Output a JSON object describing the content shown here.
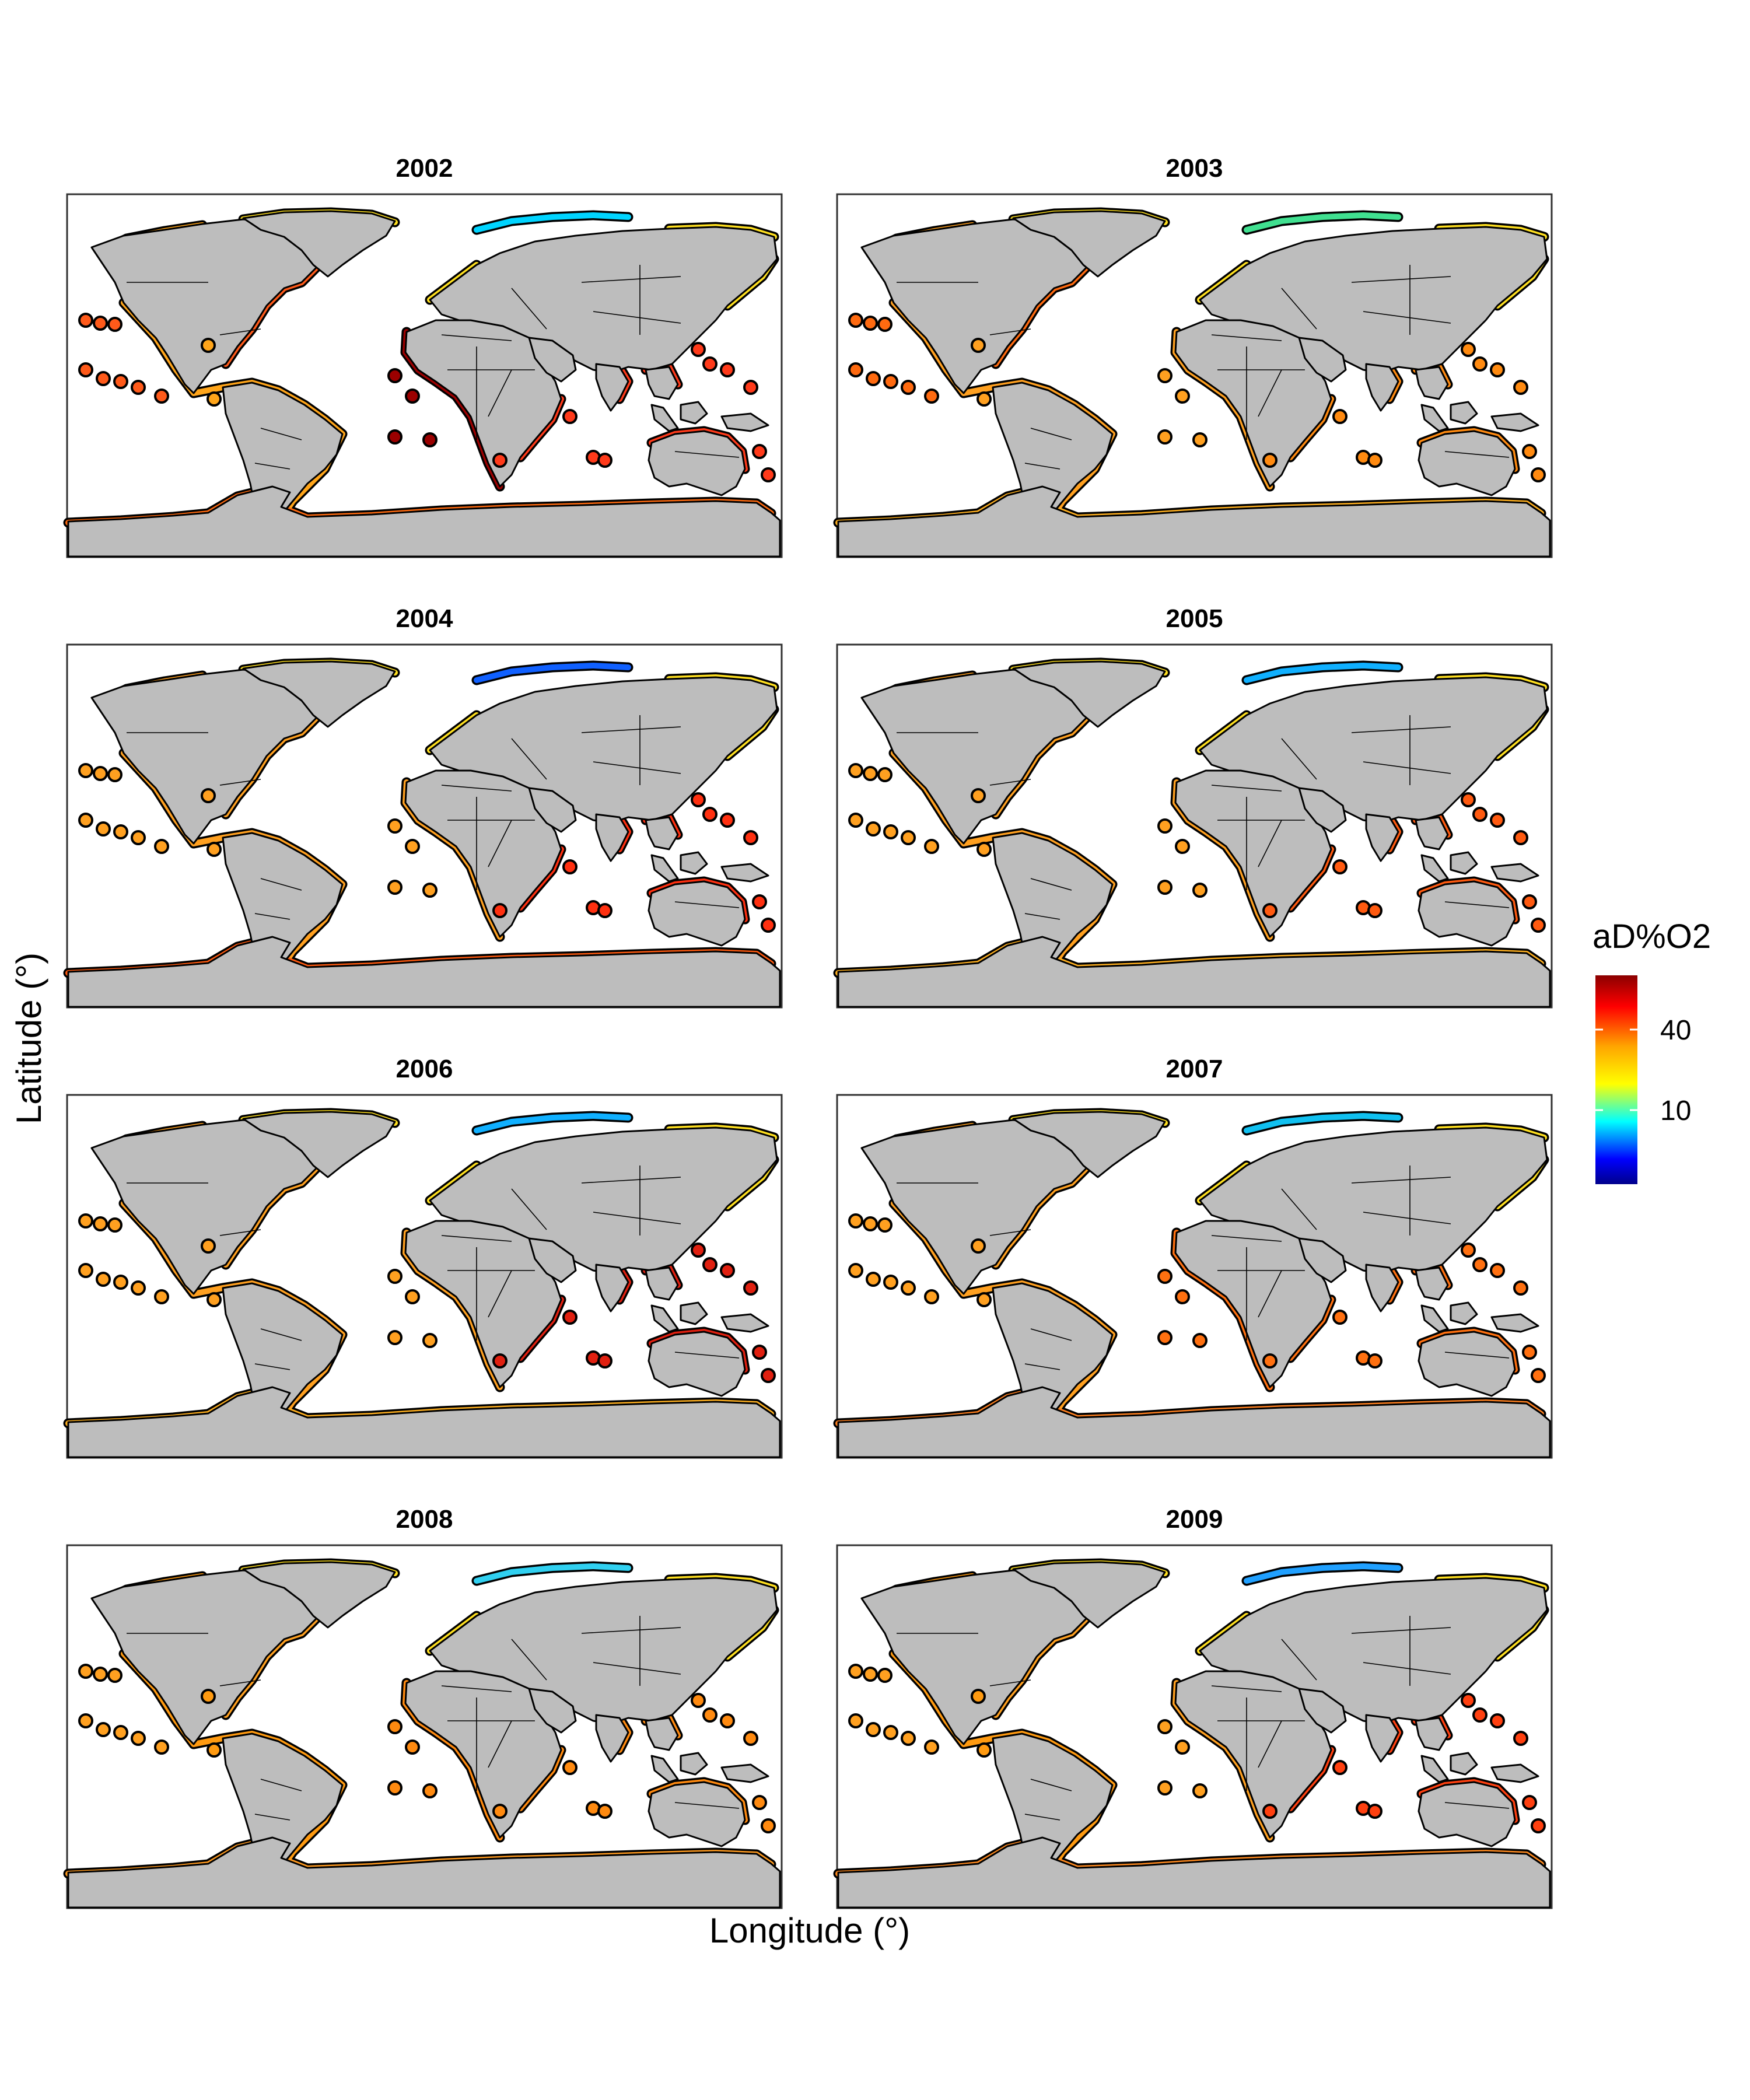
{
  "figure": {
    "x_axis_title": "Longitude (°)",
    "y_axis_title": "Latitude (°)"
  },
  "legend": {
    "title": "aD%O2",
    "ticks": [
      "40",
      "10"
    ],
    "colors": [
      "#00008b",
      "#0000ff",
      "#00ffff",
      "#ffff00",
      "#ffa500",
      "#ff0000",
      "#8b0000"
    ]
  },
  "map_style": {
    "land_color": "#bdbdbd",
    "ocean_color": "#ffffff",
    "coastline_color": "#000000"
  },
  "panels": [
    {
      "title": "2002",
      "scheme": {
        "arctic": "#00d4ff",
        "americas": "#ffa51a",
        "pacific": "#ff5a1a",
        "africa_w": "#9b0000",
        "indo": "#ff3a1a",
        "south": "#ff6a10"
      }
    },
    {
      "title": "2003",
      "scheme": {
        "arctic": "#40e090",
        "americas": "#ffa020",
        "pacific": "#ff6a10",
        "africa_w": "#ffa020",
        "indo": "#ff8a10",
        "south": "#ffb020"
      }
    },
    {
      "title": "2004",
      "scheme": {
        "arctic": "#1060ff",
        "americas": "#ffa020",
        "pacific": "#ffa020",
        "africa_w": "#ffa020",
        "indo": "#ff3010",
        "south": "#ff5a10"
      }
    },
    {
      "title": "2005",
      "scheme": {
        "arctic": "#10b0ff",
        "americas": "#ffa020",
        "pacific": "#ffa020",
        "africa_w": "#ffa020",
        "indo": "#ff5a10",
        "south": "#ffb020"
      }
    },
    {
      "title": "2006",
      "scheme": {
        "arctic": "#10b0ff",
        "americas": "#ffa020",
        "pacific": "#ffa020",
        "africa_w": "#ffa020",
        "indo": "#e02010",
        "south": "#ffb020"
      }
    },
    {
      "title": "2007",
      "scheme": {
        "arctic": "#10c0f0",
        "americas": "#ffa020",
        "pacific": "#ffa020",
        "africa_w": "#ff7010",
        "indo": "#ff7010",
        "south": "#ff8020"
      }
    },
    {
      "title": "2008",
      "scheme": {
        "arctic": "#30d0f0",
        "americas": "#ff9a10",
        "pacific": "#ffa020",
        "africa_w": "#ff8a10",
        "indo": "#ff8a10",
        "south": "#ff9a20"
      }
    },
    {
      "title": "2009",
      "scheme": {
        "arctic": "#20a0ff",
        "americas": "#ff9a10",
        "pacific": "#ffa020",
        "africa_w": "#ffa020",
        "indo": "#ff4010",
        "south": "#ff8a20"
      }
    }
  ]
}
